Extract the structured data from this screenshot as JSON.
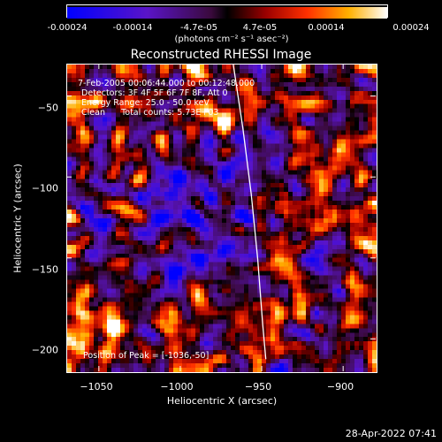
{
  "colorbar": {
    "tick_labels": [
      "-0.00024",
      "-0.00014",
      "-4.7e-05",
      "4.7e-05",
      "0.00014",
      "0.00024"
    ],
    "tick_values": [
      -0.00024,
      -0.00014,
      -4.7e-05,
      4.7e-05,
      0.00014,
      0.00024
    ],
    "range": [
      -0.00024,
      0.00024
    ],
    "units": "(photons cm⁻² s⁻¹ asec⁻²)"
  },
  "chart_data": {
    "type": "heatmap",
    "title": "Reconstructed RHESSI Image",
    "xlabel": "Heliocentric X (arcsec)",
    "ylabel": "Heliocentric Y (arcsec)",
    "xlim": [
      -1070,
      -880
    ],
    "ylim": [
      -220,
      -30
    ],
    "xticks": [
      -1050,
      -1000,
      -950,
      -900
    ],
    "yticks": [
      -50,
      -100,
      -150,
      -200
    ],
    "xtick_labels": [
      "−1050",
      "−1000",
      "−950",
      "−900"
    ],
    "ytick_labels": [
      "−50",
      "−100",
      "−150",
      "−200"
    ],
    "colormap": "blue-purple-red-yellow-white",
    "info_lines": [
      "7-Feb-2005 00:06:44.000 to 00:12:48.000",
      "Detectors: 3F 4F 5F 6F 7F 8F, Att 0",
      "Energy Range: 25.0 - 50.0 keV",
      "Clean      Total counts: 5.73E+03"
    ],
    "peak_text": "Position of Peak = [-1036,-50]",
    "limb_points": [
      [
        -968,
        -30
      ],
      [
        -962,
        -70
      ],
      [
        -957,
        -110
      ],
      [
        -953,
        -150
      ],
      [
        -950,
        -190
      ],
      [
        -948,
        -212
      ]
    ]
  },
  "timestamp": "28-Apr-2022 07:41"
}
